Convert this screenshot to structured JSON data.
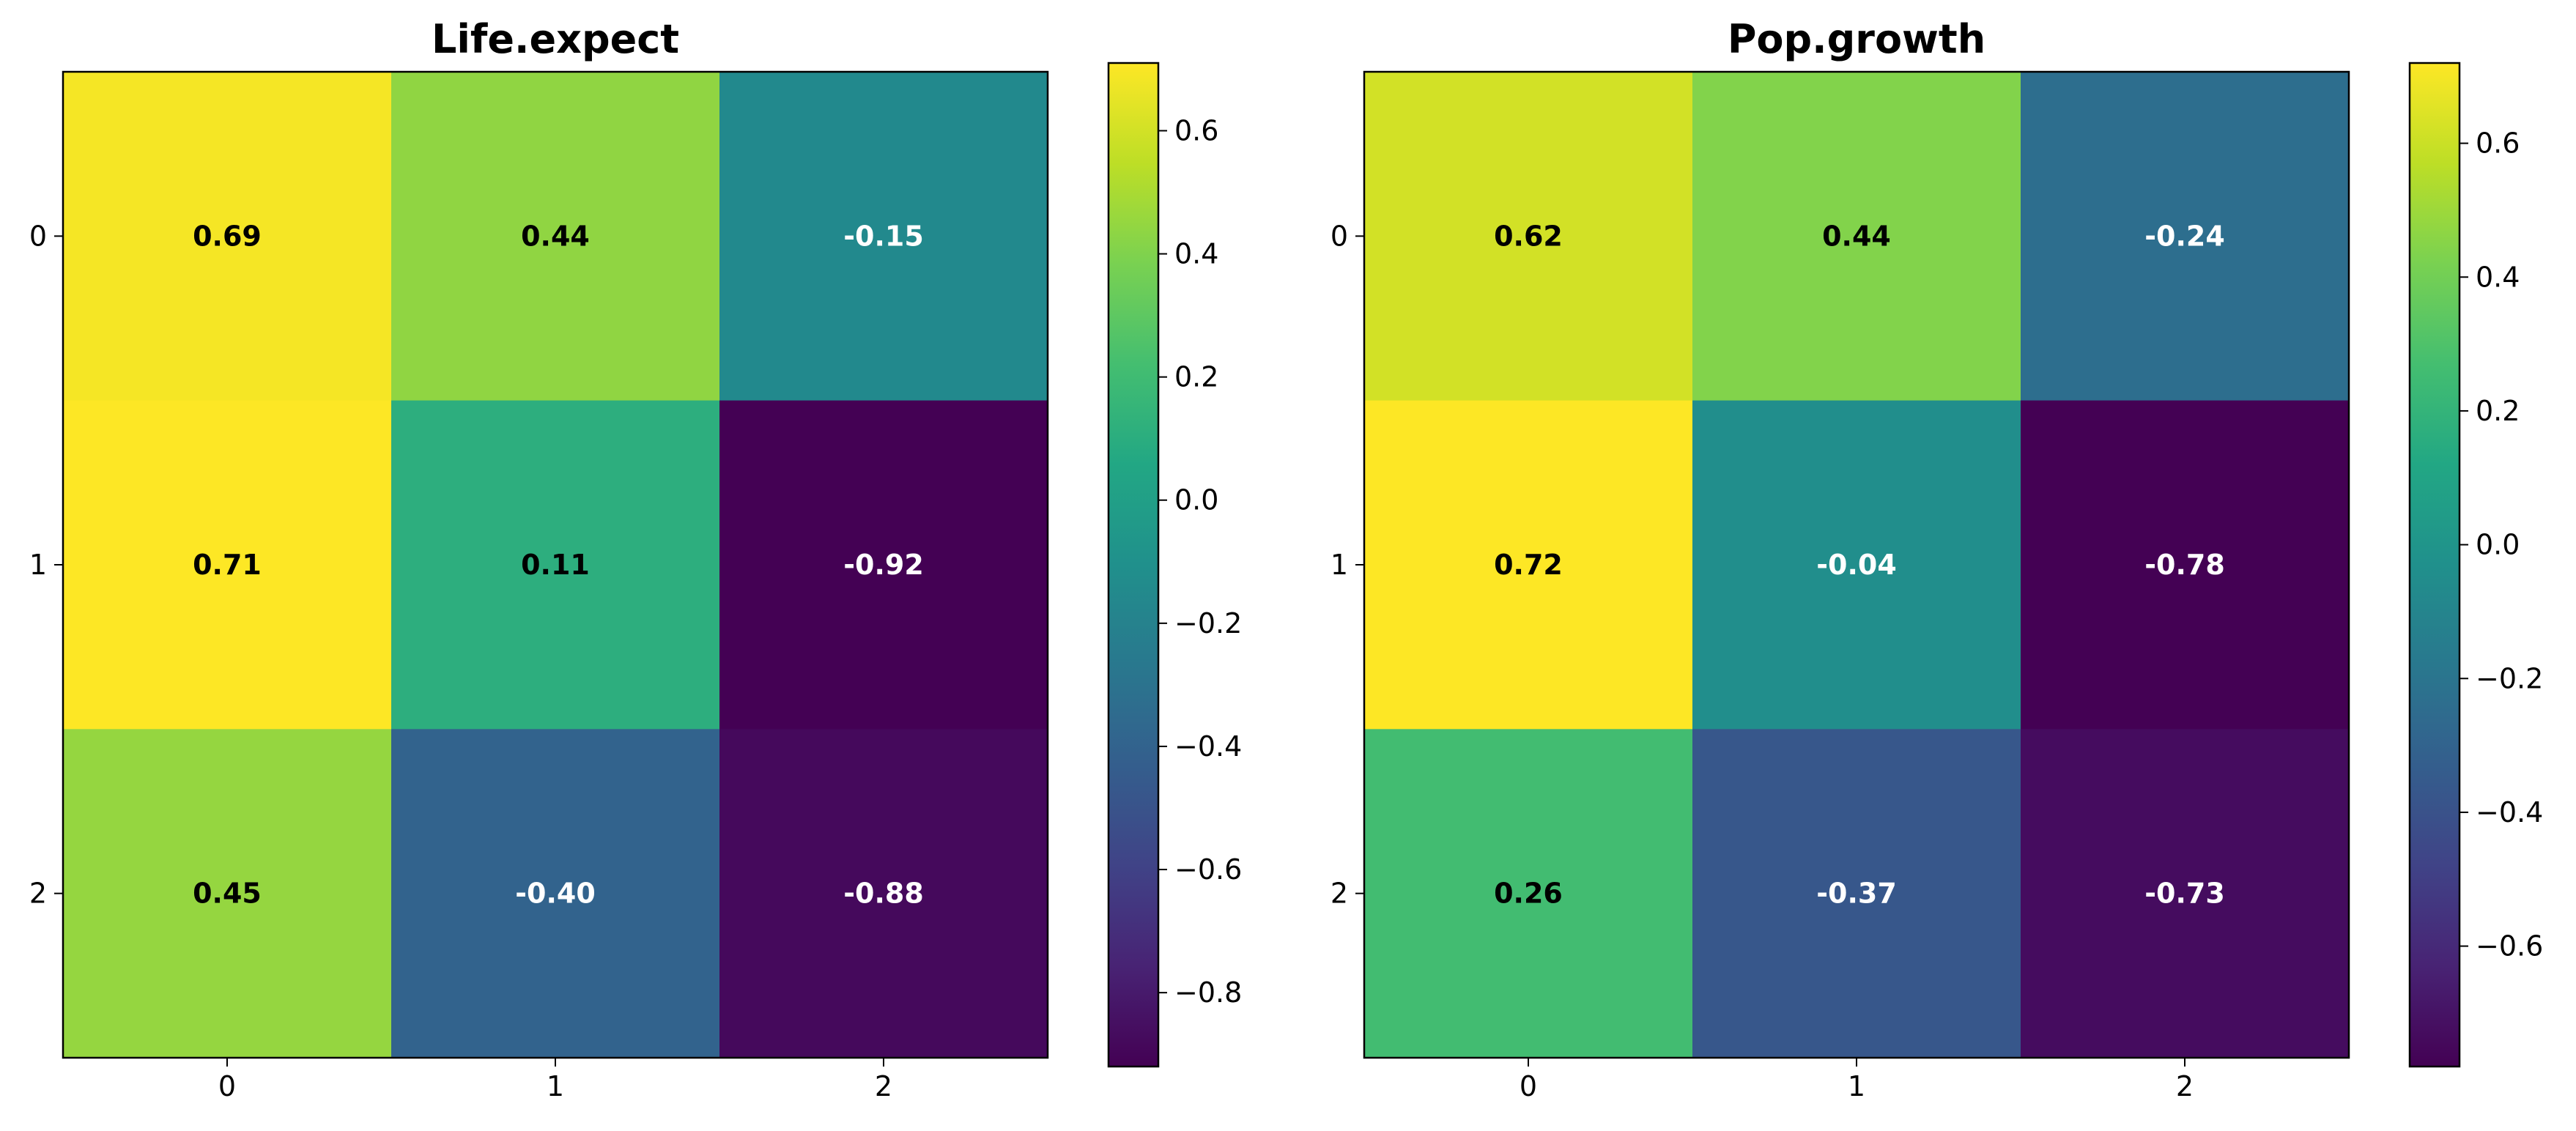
{
  "chart_data": [
    {
      "type": "heatmap",
      "title": "Life.expect",
      "x_ticks": [
        "0",
        "1",
        "2"
      ],
      "y_ticks": [
        "0",
        "1",
        "2"
      ],
      "values": [
        [
          0.69,
          0.44,
          -0.15
        ],
        [
          0.71,
          0.11,
          -0.92
        ],
        [
          0.45,
          -0.4,
          -0.88
        ]
      ],
      "value_labels": [
        [
          "0.69",
          "0.44",
          "-0.15"
        ],
        [
          "0.71",
          "0.11",
          "-0.92"
        ],
        [
          "0.45",
          "-0.40",
          "-0.88"
        ]
      ],
      "colormap": "viridis",
      "color_range": [
        -0.92,
        0.71
      ],
      "colorbar_ticks": [
        0.6,
        0.4,
        0.2,
        0.0,
        -0.2,
        -0.4,
        -0.6,
        -0.8
      ],
      "colorbar_tick_labels": [
        "0.6",
        "0.4",
        "0.2",
        "0.0",
        "−0.2",
        "−0.4",
        "−0.6",
        "−0.8"
      ],
      "grid": false
    },
    {
      "type": "heatmap",
      "title": "Pop.growth",
      "x_ticks": [
        "0",
        "1",
        "2"
      ],
      "y_ticks": [
        "0",
        "1",
        "2"
      ],
      "values": [
        [
          0.62,
          0.44,
          -0.24
        ],
        [
          0.72,
          -0.04,
          -0.78
        ],
        [
          0.26,
          -0.37,
          -0.73
        ]
      ],
      "value_labels": [
        [
          "0.62",
          "0.44",
          "-0.24"
        ],
        [
          "0.72",
          "-0.04",
          "-0.78"
        ],
        [
          "0.26",
          "-0.37",
          "-0.73"
        ]
      ],
      "colormap": "viridis",
      "color_range": [
        -0.78,
        0.72
      ],
      "colorbar_ticks": [
        0.6,
        0.4,
        0.2,
        0.0,
        -0.2,
        -0.4,
        -0.6
      ],
      "colorbar_tick_labels": [
        "0.6",
        "0.4",
        "0.2",
        "0.0",
        "−0.2",
        "−0.4",
        "−0.6"
      ],
      "grid": false
    }
  ]
}
